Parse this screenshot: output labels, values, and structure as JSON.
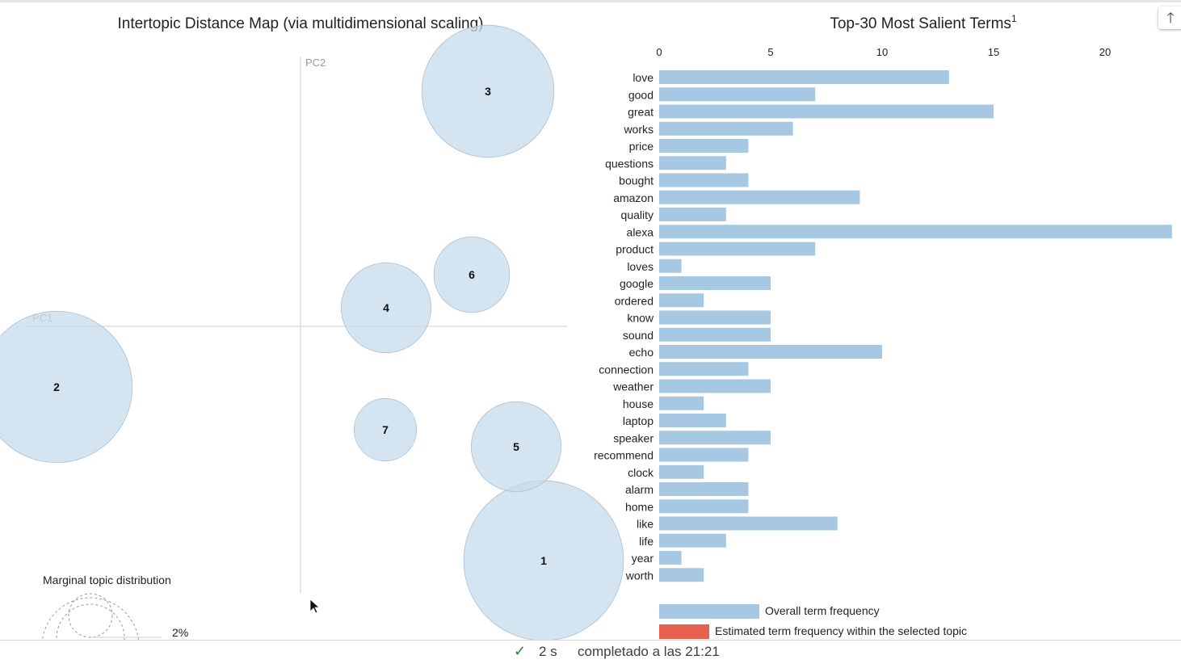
{
  "chart_data": [
    {
      "type": "scatter",
      "title": "Intertopic Distance Map (via multidimensional scaling)",
      "xlabel": "PC1",
      "ylabel": "PC2",
      "grid": false,
      "topics": [
        {
          "label": "1",
          "pc1": 3.01,
          "pc2": -2.9,
          "size": 9.8
        },
        {
          "label": "2",
          "pc1": -3.02,
          "pc2": -0.75,
          "size": 8.8
        },
        {
          "label": "3",
          "pc1": 2.32,
          "pc2": 2.91,
          "size": 6.7
        },
        {
          "label": "4",
          "pc1": 1.06,
          "pc2": 0.23,
          "size": 3.1
        },
        {
          "label": "5",
          "pc1": 2.67,
          "pc2": -1.49,
          "size": 3.1
        },
        {
          "label": "6",
          "pc1": 2.12,
          "pc2": 0.64,
          "size": 2.2
        },
        {
          "label": "7",
          "pc1": 1.05,
          "pc2": -1.28,
          "size": 1.5
        }
      ],
      "marginal": {
        "title": "Marginal topic distribution",
        "legend_label": "2%"
      }
    },
    {
      "type": "bar",
      "orientation": "horizontal",
      "title": "Top-30 Most Salient Terms",
      "title_superscript": "1",
      "xlim": [
        0,
        23
      ],
      "xticks": [
        "0",
        "5",
        "10",
        "15",
        "20"
      ],
      "categories": [
        "love",
        "good",
        "great",
        "works",
        "price",
        "questions",
        "bought",
        "amazon",
        "quality",
        "alexa",
        "product",
        "loves",
        "google",
        "ordered",
        "know",
        "sound",
        "echo",
        "connection",
        "weather",
        "house",
        "laptop",
        "speaker",
        "recommend",
        "clock",
        "alarm",
        "home",
        "like",
        "life",
        "year",
        "worth"
      ],
      "series": [
        {
          "name": "Overall term frequency",
          "color": "#a6c8e3",
          "values": [
            13,
            7,
            15,
            6,
            4,
            3,
            4,
            9,
            3,
            23,
            7,
            1,
            5,
            2,
            5,
            5,
            10,
            4,
            5,
            2,
            3,
            5,
            4,
            2,
            4,
            4,
            8,
            3,
            1,
            2
          ]
        }
      ],
      "legend": [
        {
          "label": "Overall term frequency",
          "color": "#a6c8e3"
        },
        {
          "label": "Estimated term frequency within the selected topic",
          "color": "#e8604e"
        }
      ],
      "legend_placement": "bottom"
    }
  ],
  "status": {
    "check_icon": "check-icon",
    "duration": "2 s",
    "message": "completado a las 21:21"
  },
  "scroll_button": {
    "icon": "arrow-up-icon",
    "glyph": "🡑"
  }
}
